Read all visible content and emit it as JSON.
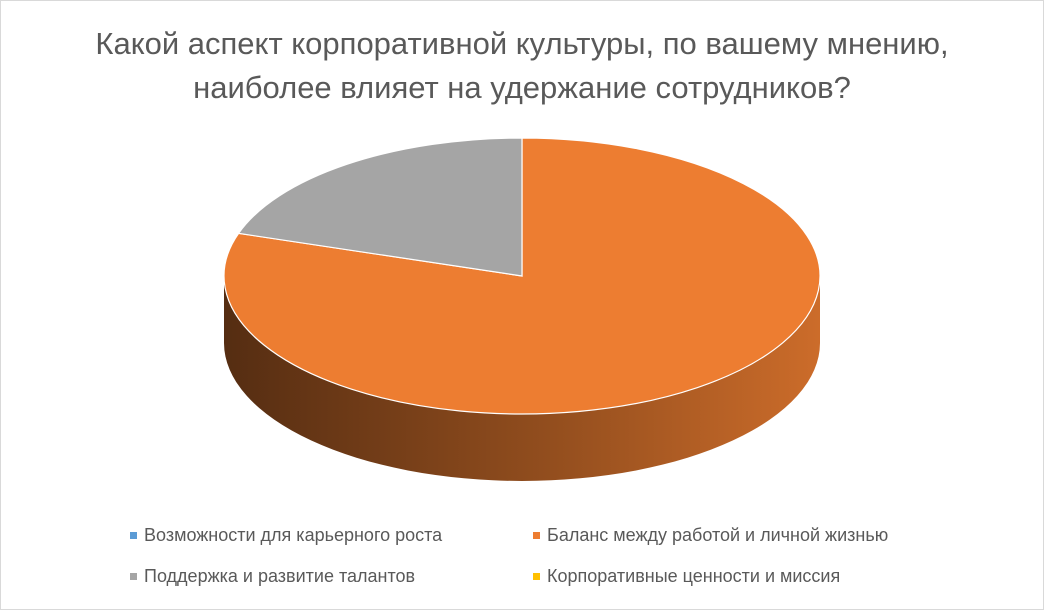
{
  "title": "Какой аспект корпоративной культуры, по вашему мнению, наиболее влияет на удержание сотрудников?",
  "chart_data": {
    "type": "pie",
    "title": "Какой аспект корпоративной культуры, по вашему мнению, наиболее влияет на удержание сотрудников?",
    "categories": [
      "Возможности для карьерного роста",
      "Баланс между работой и личной жизнью",
      "Поддержка и развитие талантов",
      "Корпоративные ценности и миссия"
    ],
    "values": [
      0,
      80,
      20,
      0
    ],
    "colors": [
      "#5b9bd5",
      "#ed7d31",
      "#a5a5a5",
      "#ffc000"
    ],
    "legend_position": "bottom",
    "style": "3d"
  }
}
